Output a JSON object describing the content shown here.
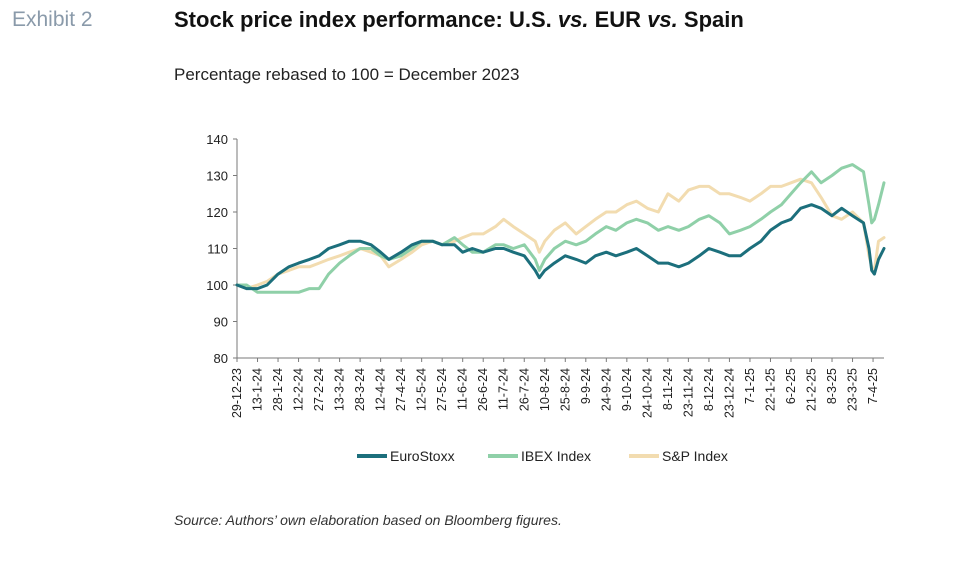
{
  "exhibit_label": "Exhibit 2",
  "title": {
    "part1": "Stock price index performance: U.S. ",
    "vs1": "vs.",
    "part2": " EUR ",
    "vs2": "vs.",
    "part3": " Spain"
  },
  "subtitle": "Percentage rebased to 100 = December 2023",
  "source": "Source: Authors’ own elaboration based on Bloomberg figures.",
  "chart_data": {
    "type": "line",
    "ylim": [
      80,
      140
    ],
    "yticks": [
      80,
      90,
      100,
      110,
      120,
      130,
      140
    ],
    "xlim": [
      "29-12-23",
      "15-4-25"
    ],
    "xticks": [
      "29-12-23",
      "13-1-24",
      "28-1-24",
      "12-2-24",
      "27-2-24",
      "13-3-24",
      "28-3-24",
      "12-4-24",
      "27-4-24",
      "12-5-24",
      "27-5-24",
      "11-6-24",
      "26-6-24",
      "11-7-24",
      "26-7-24",
      "10-8-24",
      "25-8-24",
      "9-9-24",
      "24-9-24",
      "9-10-24",
      "24-10-24",
      "8-11-24",
      "23-11-24",
      "8-12-24",
      "23-12-24",
      "7-1-25",
      "22-1-25",
      "6-2-25",
      "21-2-25",
      "8-3-25",
      "23-3-25",
      "7-4-25"
    ],
    "legend_position": "bottom",
    "grid": false,
    "colors": {
      "eurostoxx": "#1c6f7c",
      "ibex": "#8fd0a8",
      "sp": "#f2dcb0"
    },
    "series": [
      {
        "name": "EuroStoxx",
        "key": "eurostoxx",
        "points": [
          [
            "29-12-23",
            100
          ],
          [
            "5-1-24",
            99
          ],
          [
            "13-1-24",
            99
          ],
          [
            "20-1-24",
            100
          ],
          [
            "28-1-24",
            103
          ],
          [
            "5-2-24",
            105
          ],
          [
            "12-2-24",
            106
          ],
          [
            "20-2-24",
            107
          ],
          [
            "27-2-24",
            108
          ],
          [
            "5-3-24",
            110
          ],
          [
            "13-3-24",
            111
          ],
          [
            "20-3-24",
            112
          ],
          [
            "28-3-24",
            112
          ],
          [
            "5-4-24",
            111
          ],
          [
            "12-4-24",
            109
          ],
          [
            "18-4-24",
            107
          ],
          [
            "27-4-24",
            109
          ],
          [
            "5-5-24",
            111
          ],
          [
            "12-5-24",
            112
          ],
          [
            "20-5-24",
            112
          ],
          [
            "27-5-24",
            111
          ],
          [
            "5-6-24",
            111
          ],
          [
            "11-6-24",
            109
          ],
          [
            "18-6-24",
            110
          ],
          [
            "26-6-24",
            109
          ],
          [
            "5-7-24",
            110
          ],
          [
            "11-7-24",
            110
          ],
          [
            "18-7-24",
            109
          ],
          [
            "26-7-24",
            108
          ],
          [
            "3-8-24",
            104
          ],
          [
            "6-8-24",
            102
          ],
          [
            "10-8-24",
            104
          ],
          [
            "17-8-24",
            106
          ],
          [
            "25-8-24",
            108
          ],
          [
            "2-9-24",
            107
          ],
          [
            "9-9-24",
            106
          ],
          [
            "16-9-24",
            108
          ],
          [
            "24-9-24",
            109
          ],
          [
            "1-10-24",
            108
          ],
          [
            "9-10-24",
            109
          ],
          [
            "16-10-24",
            110
          ],
          [
            "24-10-24",
            108
          ],
          [
            "1-11-24",
            106
          ],
          [
            "8-11-24",
            106
          ],
          [
            "16-11-24",
            105
          ],
          [
            "23-11-24",
            106
          ],
          [
            "1-12-24",
            108
          ],
          [
            "8-12-24",
            110
          ],
          [
            "16-12-24",
            109
          ],
          [
            "23-12-24",
            108
          ],
          [
            "31-12-24",
            108
          ],
          [
            "7-1-25",
            110
          ],
          [
            "15-1-25",
            112
          ],
          [
            "22-1-25",
            115
          ],
          [
            "30-1-25",
            117
          ],
          [
            "6-2-25",
            118
          ],
          [
            "13-2-25",
            121
          ],
          [
            "21-2-25",
            122
          ],
          [
            "28-2-25",
            121
          ],
          [
            "8-3-25",
            119
          ],
          [
            "15-3-25",
            121
          ],
          [
            "23-3-25",
            119
          ],
          [
            "31-3-25",
            117
          ],
          [
            "4-4-25",
            110
          ],
          [
            "6-4-25",
            104
          ],
          [
            "8-4-25",
            103
          ],
          [
            "11-4-25",
            107
          ],
          [
            "15-4-25",
            110
          ]
        ]
      },
      {
        "name": "IBEX Index",
        "key": "ibex",
        "points": [
          [
            "29-12-23",
            100
          ],
          [
            "5-1-24",
            100
          ],
          [
            "13-1-24",
            98
          ],
          [
            "20-1-24",
            98
          ],
          [
            "28-1-24",
            98
          ],
          [
            "5-2-24",
            98
          ],
          [
            "12-2-24",
            98
          ],
          [
            "20-2-24",
            99
          ],
          [
            "27-2-24",
            99
          ],
          [
            "5-3-24",
            103
          ],
          [
            "13-3-24",
            106
          ],
          [
            "20-3-24",
            108
          ],
          [
            "28-3-24",
            110
          ],
          [
            "5-4-24",
            110
          ],
          [
            "12-4-24",
            108
          ],
          [
            "18-4-24",
            107
          ],
          [
            "27-4-24",
            108
          ],
          [
            "5-5-24",
            110
          ],
          [
            "12-5-24",
            112
          ],
          [
            "20-5-24",
            112
          ],
          [
            "27-5-24",
            111
          ],
          [
            "5-6-24",
            113
          ],
          [
            "11-6-24",
            111
          ],
          [
            "18-6-24",
            109
          ],
          [
            "26-6-24",
            109
          ],
          [
            "5-7-24",
            111
          ],
          [
            "11-7-24",
            111
          ],
          [
            "18-7-24",
            110
          ],
          [
            "26-7-24",
            111
          ],
          [
            "3-8-24",
            107
          ],
          [
            "6-8-24",
            104
          ],
          [
            "10-8-24",
            107
          ],
          [
            "17-8-24",
            110
          ],
          [
            "25-8-24",
            112
          ],
          [
            "2-9-24",
            111
          ],
          [
            "9-9-24",
            112
          ],
          [
            "16-9-24",
            114
          ],
          [
            "24-9-24",
            116
          ],
          [
            "1-10-24",
            115
          ],
          [
            "9-10-24",
            117
          ],
          [
            "16-10-24",
            118
          ],
          [
            "24-10-24",
            117
          ],
          [
            "1-11-24",
            115
          ],
          [
            "8-11-24",
            116
          ],
          [
            "16-11-24",
            115
          ],
          [
            "23-11-24",
            116
          ],
          [
            "1-12-24",
            118
          ],
          [
            "8-12-24",
            119
          ],
          [
            "16-12-24",
            117
          ],
          [
            "23-12-24",
            114
          ],
          [
            "31-12-24",
            115
          ],
          [
            "7-1-25",
            116
          ],
          [
            "15-1-25",
            118
          ],
          [
            "22-1-25",
            120
          ],
          [
            "30-1-25",
            122
          ],
          [
            "6-2-25",
            125
          ],
          [
            "13-2-25",
            128
          ],
          [
            "21-2-25",
            131
          ],
          [
            "28-2-25",
            128
          ],
          [
            "8-3-25",
            130
          ],
          [
            "15-3-25",
            132
          ],
          [
            "23-3-25",
            133
          ],
          [
            "31-3-25",
            131
          ],
          [
            "4-4-25",
            122
          ],
          [
            "6-4-25",
            117
          ],
          [
            "8-4-25",
            118
          ],
          [
            "11-4-25",
            122
          ],
          [
            "15-4-25",
            128
          ]
        ]
      },
      {
        "name": "S&P Index",
        "key": "sp",
        "points": [
          [
            "29-12-23",
            100
          ],
          [
            "5-1-24",
            99
          ],
          [
            "13-1-24",
            100
          ],
          [
            "20-1-24",
            101
          ],
          [
            "28-1-24",
            103
          ],
          [
            "5-2-24",
            104
          ],
          [
            "12-2-24",
            105
          ],
          [
            "20-2-24",
            105
          ],
          [
            "27-2-24",
            106
          ],
          [
            "5-3-24",
            107
          ],
          [
            "13-3-24",
            108
          ],
          [
            "20-3-24",
            109
          ],
          [
            "28-3-24",
            110
          ],
          [
            "5-4-24",
            109
          ],
          [
            "12-4-24",
            108
          ],
          [
            "18-4-24",
            105
          ],
          [
            "27-4-24",
            107
          ],
          [
            "5-5-24",
            109
          ],
          [
            "12-5-24",
            111
          ],
          [
            "20-5-24",
            112
          ],
          [
            "27-5-24",
            111
          ],
          [
            "5-6-24",
            112
          ],
          [
            "11-6-24",
            113
          ],
          [
            "18-6-24",
            114
          ],
          [
            "26-6-24",
            114
          ],
          [
            "5-7-24",
            116
          ],
          [
            "11-7-24",
            118
          ],
          [
            "18-7-24",
            116
          ],
          [
            "26-7-24",
            114
          ],
          [
            "3-8-24",
            112
          ],
          [
            "6-8-24",
            109
          ],
          [
            "10-8-24",
            112
          ],
          [
            "17-8-24",
            115
          ],
          [
            "25-8-24",
            117
          ],
          [
            "2-9-24",
            114
          ],
          [
            "9-9-24",
            116
          ],
          [
            "16-9-24",
            118
          ],
          [
            "24-9-24",
            120
          ],
          [
            "1-10-24",
            120
          ],
          [
            "9-10-24",
            122
          ],
          [
            "16-10-24",
            123
          ],
          [
            "24-10-24",
            121
          ],
          [
            "1-11-24",
            120
          ],
          [
            "8-11-24",
            125
          ],
          [
            "16-11-24",
            123
          ],
          [
            "23-11-24",
            126
          ],
          [
            "1-12-24",
            127
          ],
          [
            "8-12-24",
            127
          ],
          [
            "16-12-24",
            125
          ],
          [
            "23-12-24",
            125
          ],
          [
            "31-12-24",
            124
          ],
          [
            "7-1-25",
            123
          ],
          [
            "15-1-25",
            125
          ],
          [
            "22-1-25",
            127
          ],
          [
            "30-1-25",
            127
          ],
          [
            "6-2-25",
            128
          ],
          [
            "13-2-25",
            129
          ],
          [
            "21-2-25",
            128
          ],
          [
            "28-2-25",
            124
          ],
          [
            "8-3-25",
            119
          ],
          [
            "15-3-25",
            118
          ],
          [
            "23-3-25",
            120
          ],
          [
            "31-3-25",
            117
          ],
          [
            "4-4-25",
            108
          ],
          [
            "6-4-25",
            105
          ],
          [
            "8-4-25",
            104
          ],
          [
            "11-4-25",
            112
          ],
          [
            "15-4-25",
            113
          ]
        ]
      }
    ]
  }
}
